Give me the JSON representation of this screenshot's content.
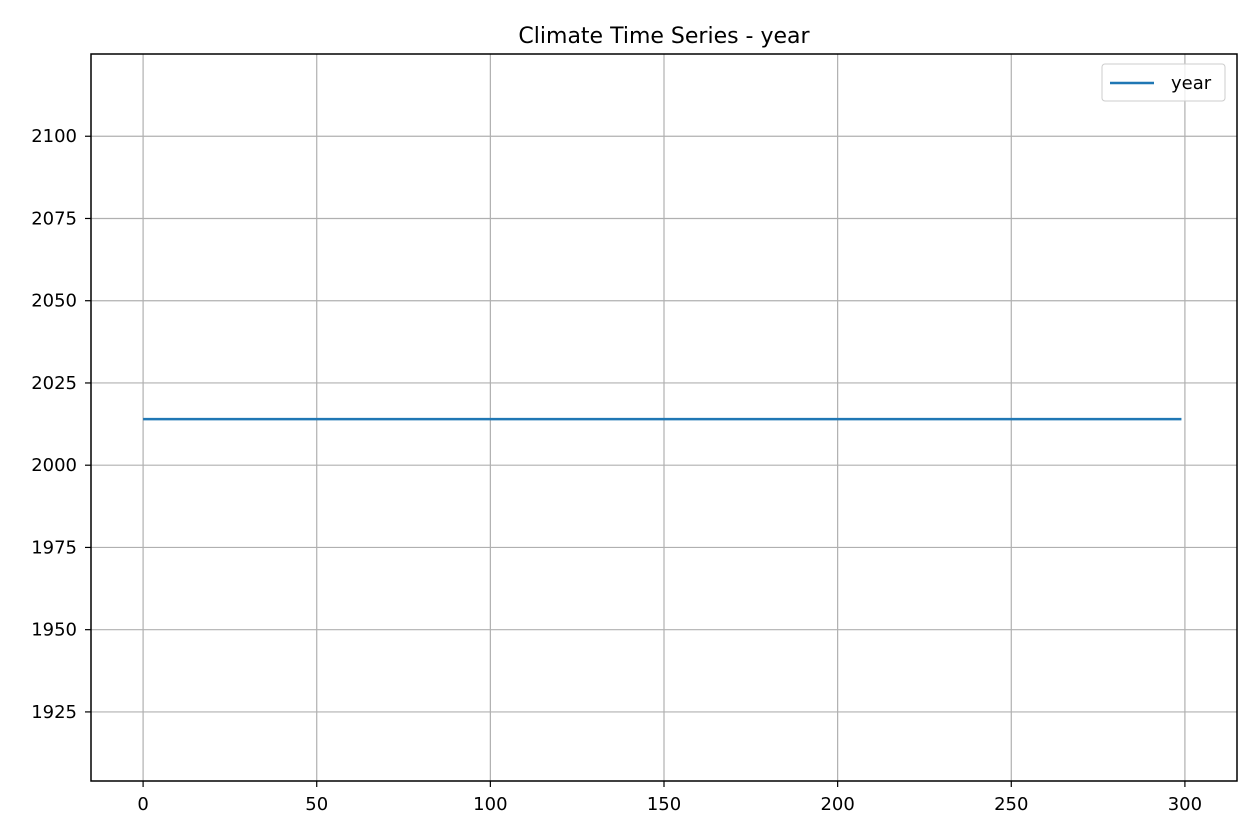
{
  "chart_data": {
    "type": "line",
    "title": "Climate Time Series - year",
    "xlabel": "",
    "ylabel": "",
    "xlim": [
      -15,
      315
    ],
    "ylim": [
      1904,
      2125
    ],
    "xticks": [
      0,
      50,
      100,
      150,
      200,
      250,
      300
    ],
    "yticks": [
      1925,
      1950,
      1975,
      2000,
      2025,
      2050,
      2075,
      2100
    ],
    "grid": true,
    "legend_position": "top-right",
    "series": [
      {
        "name": "year",
        "color": "#1f77b4",
        "x": [
          0,
          299
        ],
        "y": [
          2014,
          2014
        ]
      }
    ]
  }
}
